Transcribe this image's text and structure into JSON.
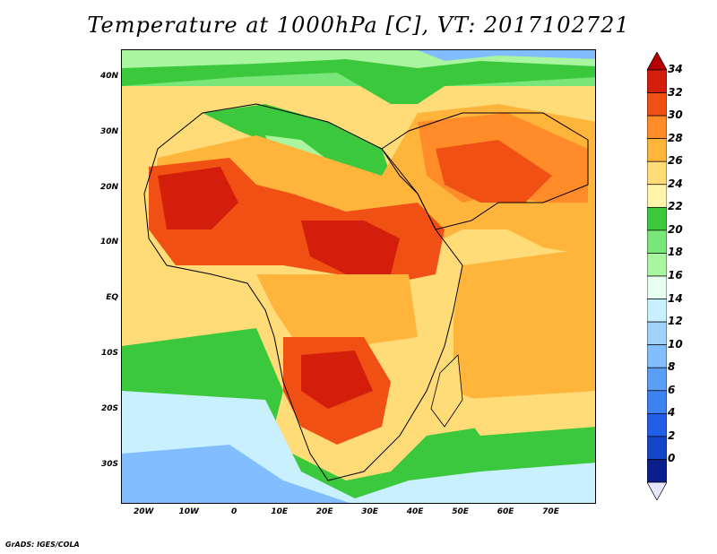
{
  "title": "Temperature at 1000hPa [C], VT: 2017102721",
  "credit": "GrADS: IGES/COLA",
  "map": {
    "lon_range": [
      -25,
      80
    ],
    "lat_range": [
      -37,
      45
    ],
    "lat_labels": [
      "40N",
      "30N",
      "20N",
      "10N",
      "EQ",
      "10S",
      "20S",
      "30S"
    ],
    "lat_values": [
      40,
      30,
      20,
      10,
      0,
      -10,
      -20,
      -30
    ],
    "lon_labels": [
      "20W",
      "10W",
      "0",
      "10E",
      "20E",
      "30E",
      "40E",
      "50E",
      "60E",
      "70E"
    ],
    "lon_values": [
      -20,
      -10,
      0,
      10,
      20,
      30,
      40,
      50,
      60,
      70
    ]
  },
  "colorbar": {
    "labels": [
      "34",
      "32",
      "30",
      "28",
      "26",
      "24",
      "22",
      "20",
      "18",
      "16",
      "14",
      "12",
      "10",
      "8",
      "6",
      "4",
      "2",
      "0"
    ],
    "levels": [
      34,
      32,
      30,
      28,
      26,
      24,
      22,
      20,
      18,
      16,
      14,
      12,
      10,
      8,
      6,
      4,
      2,
      0
    ],
    "colors_low_to_high": [
      "#e6e6ff",
      "#0a1e8c",
      "#1446c8",
      "#2060e6",
      "#3c82f0",
      "#5a9ff5",
      "#82beff",
      "#a0d2fa",
      "#c8f0ff",
      "#e6fff0",
      "#aaf5a0",
      "#78e678",
      "#3cc83c",
      "#fff5aa",
      "#ffdc78",
      "#ffb43c",
      "#ff8c28",
      "#f05014",
      "#d21e0a",
      "#b40000"
    ]
  }
}
